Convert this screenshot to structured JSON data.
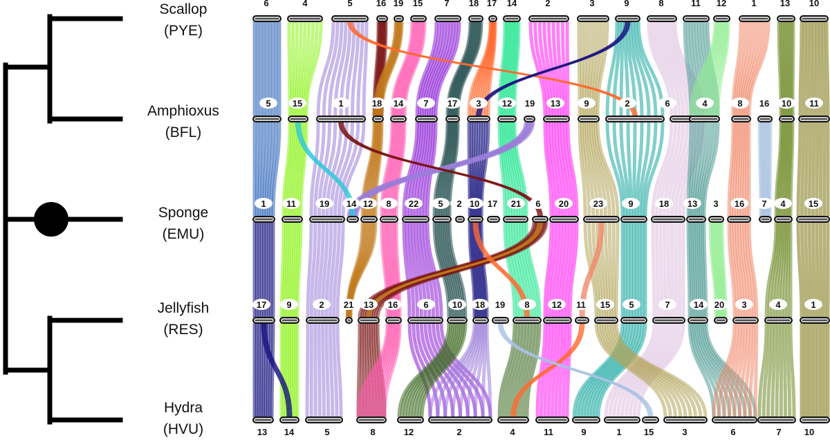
{
  "tree": {
    "node_marker": "filled-circle"
  },
  "species": [
    {
      "name": "Scallop",
      "code": "(PYE)"
    },
    {
      "name": "Amphioxus",
      "code": "(BFL)"
    },
    {
      "name": "Sponge",
      "code": "(EMU)"
    },
    {
      "name": "Jellyfish",
      "code": "(RES)"
    },
    {
      "name": "Hydra",
      "code": "(HVU)"
    }
  ],
  "chromosome_rows": [
    {
      "species": "Scallop",
      "labels": [
        "6",
        "4",
        "5",
        "16",
        "19",
        "15",
        "7",
        "18",
        "17",
        "14",
        "2",
        "3",
        "9",
        "8",
        "11",
        "12",
        "1",
        "13",
        "10"
      ]
    },
    {
      "species": "Amphioxus",
      "labels": [
        "5",
        "15",
        "1",
        "18",
        "14",
        "7",
        "17",
        "3",
        "12",
        "19",
        "13",
        "9",
        "2",
        "6",
        "4",
        "8",
        "16",
        "10",
        "11"
      ]
    },
    {
      "species": "Sponge",
      "labels": [
        "1",
        "11",
        "19",
        "14",
        "12",
        "8",
        "22",
        "5",
        "2",
        "10",
        "17",
        "21",
        "6",
        "20",
        "23",
        "9",
        "18",
        "13",
        "3",
        "16",
        "7",
        "4",
        "15"
      ]
    },
    {
      "species": "Jellyfish",
      "labels": [
        "17",
        "9",
        "2",
        "21",
        "13",
        "16",
        "6",
        "10",
        "18",
        "19",
        "8",
        "12",
        "11",
        "15",
        "5",
        "7",
        "14",
        "20",
        "3",
        "4",
        "1"
      ]
    },
    {
      "species": "Hydra",
      "labels": [
        "13",
        "14",
        "5",
        "8",
        "12",
        "2",
        "4",
        "11",
        "9",
        "1",
        "15",
        "3",
        "6",
        "7",
        "10"
      ]
    }
  ],
  "colors": {
    "navy": "#16127e",
    "blue": "#2a62b8",
    "lime": "#8cf21a",
    "lavender": "#9b7ed8",
    "darkred": "#7a1212",
    "bronze": "#c17a1e",
    "pink": "#ff5ab0",
    "purple": "#8a1bd6",
    "darkteal": "#1f4a4a",
    "green": "#19e38a",
    "magenta": "#ff18f0",
    "khaki": "#b2a45a",
    "teal": "#1aa7a0",
    "lilac": "#dcbedf",
    "grayteal": "#4e9a94",
    "lightgreen": "#90ec90",
    "salmon": "#f0886a",
    "lightblue": "#a9c2e2",
    "olive": "#6d8824",
    "darkolive": "#7c7410",
    "orange": "#ff6a30",
    "cyan": "#30c8d8",
    "darkgreen": "#3c6a20",
    "mint": "#c8e8d8"
  }
}
